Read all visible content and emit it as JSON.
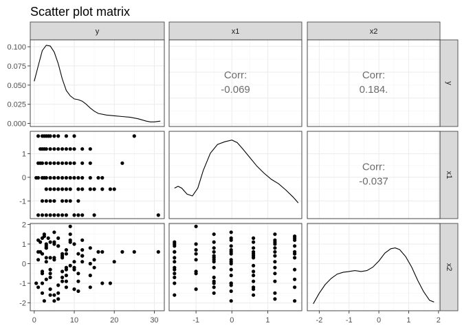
{
  "title": "Scatter plot matrix",
  "variables": [
    "y",
    "x1",
    "x2"
  ],
  "chart_data": {
    "type": "scatter-matrix",
    "title": "Scatter plot matrix",
    "variables": [
      "y",
      "x1",
      "x2"
    ],
    "grid": true,
    "axes": {
      "y": {
        "range": [
          -1,
          32.5
        ],
        "ticks": [
          0,
          10,
          20,
          30
        ],
        "tick_labels": [
          "0",
          "10",
          "20",
          "30"
        ]
      },
      "x1": {
        "range": [
          -1.75,
          1.95
        ],
        "ticks": [
          -1,
          0,
          1
        ],
        "tick_labels": [
          "-1",
          "0",
          "1"
        ]
      },
      "x2": {
        "range": [
          -2.4,
          2.05
        ],
        "ticks": [
          -2,
          -1,
          0,
          1,
          2
        ],
        "tick_labels": [
          "-2",
          "-1",
          "0",
          "1",
          "2"
        ]
      }
    },
    "density_axis": {
      "range": [
        -0.004,
        0.109
      ],
      "ticks": [
        0,
        0.025,
        0.05,
        0.075,
        0.1
      ],
      "tick_labels": [
        "0.000",
        "0.025",
        "0.050",
        "0.075",
        "0.100"
      ]
    },
    "density": {
      "y": [
        [
          0,
          0.055
        ],
        [
          1,
          0.075
        ],
        [
          2,
          0.095
        ],
        [
          3,
          0.102
        ],
        [
          4,
          0.101
        ],
        [
          5,
          0.093
        ],
        [
          6,
          0.078
        ],
        [
          7,
          0.058
        ],
        [
          8,
          0.043
        ],
        [
          9,
          0.036
        ],
        [
          10,
          0.032
        ],
        [
          11,
          0.031
        ],
        [
          12,
          0.029
        ],
        [
          13,
          0.025
        ],
        [
          14,
          0.02
        ],
        [
          15,
          0.016
        ],
        [
          16,
          0.013
        ],
        [
          18,
          0.011
        ],
        [
          20,
          0.01
        ],
        [
          22,
          0.009
        ],
        [
          24,
          0.008
        ],
        [
          26,
          0.006
        ],
        [
          28,
          0.003
        ],
        [
          29,
          0.002
        ],
        [
          30,
          0.002
        ],
        [
          31.5,
          0.003
        ]
      ],
      "x1": [
        [
          -1.6,
          0.35
        ],
        [
          -1.5,
          0.37
        ],
        [
          -1.4,
          0.35
        ],
        [
          -1.25,
          0.28
        ],
        [
          -1.1,
          0.26
        ],
        [
          -0.95,
          0.35
        ],
        [
          -0.8,
          0.55
        ],
        [
          -0.6,
          0.75
        ],
        [
          -0.4,
          0.85
        ],
        [
          -0.2,
          0.88
        ],
        [
          0,
          0.9
        ],
        [
          0.15,
          0.87
        ],
        [
          0.3,
          0.8
        ],
        [
          0.5,
          0.7
        ],
        [
          0.7,
          0.6
        ],
        [
          0.9,
          0.52
        ],
        [
          1.1,
          0.45
        ],
        [
          1.3,
          0.4
        ],
        [
          1.5,
          0.33
        ],
        [
          1.7,
          0.25
        ],
        [
          1.85,
          0.18
        ]
      ],
      "x2": [
        [
          -2.2,
          0.08
        ],
        [
          -2,
          0.2
        ],
        [
          -1.8,
          0.3
        ],
        [
          -1.6,
          0.37
        ],
        [
          -1.4,
          0.42
        ],
        [
          -1.2,
          0.44
        ],
        [
          -1,
          0.45
        ],
        [
          -0.8,
          0.46
        ],
        [
          -0.6,
          0.45
        ],
        [
          -0.4,
          0.46
        ],
        [
          -0.2,
          0.5
        ],
        [
          0,
          0.57
        ],
        [
          0.2,
          0.66
        ],
        [
          0.4,
          0.71
        ],
        [
          0.55,
          0.72
        ],
        [
          0.7,
          0.7
        ],
        [
          0.9,
          0.62
        ],
        [
          1.1,
          0.5
        ],
        [
          1.3,
          0.35
        ],
        [
          1.5,
          0.22
        ],
        [
          1.7,
          0.12
        ],
        [
          1.85,
          0.1
        ]
      ]
    },
    "correlations": [
      {
        "row": "y",
        "col": "x1",
        "label": "Corr:",
        "value": "-0.069"
      },
      {
        "row": "y",
        "col": "x2",
        "label": "Corr:",
        "value": "0.184."
      },
      {
        "row": "x1",
        "col": "x2",
        "label": "Corr:",
        "value": "-0.037"
      }
    ],
    "points": {
      "y": [
        1,
        2,
        2.5,
        3,
        3.5,
        4,
        5,
        6,
        8,
        10,
        1.5,
        2,
        2.5,
        3,
        4,
        5,
        6,
        7,
        8,
        9,
        10,
        12,
        14,
        1,
        1.5,
        2,
        3,
        4,
        5,
        6,
        7,
        8,
        9,
        10,
        12,
        14,
        22,
        0.5,
        1,
        2,
        2.5,
        3,
        4,
        5,
        6,
        7,
        8,
        9,
        10,
        11,
        12,
        14,
        16,
        17,
        3,
        4,
        5,
        6,
        7,
        8,
        9,
        11,
        12,
        14,
        15,
        17,
        19,
        20,
        2,
        3,
        4,
        5,
        7,
        8,
        9,
        11,
        1,
        2,
        3,
        4,
        5,
        6,
        7,
        8,
        10,
        11,
        12,
        15,
        25,
        31
      ],
      "x1": [
        1.75,
        1.75,
        1.75,
        1.75,
        1.75,
        1.75,
        1.75,
        1.75,
        1.75,
        1.75,
        1.2,
        1.2,
        1.2,
        1.2,
        1.2,
        1.2,
        1.2,
        1.2,
        1.2,
        1.2,
        1.2,
        1.2,
        1.2,
        0.6,
        0.6,
        0.6,
        0.6,
        0.6,
        0.6,
        0.6,
        0.6,
        0.6,
        0.6,
        0.6,
        0.6,
        0.6,
        0.6,
        -0.02,
        -0.02,
        -0.02,
        -0.02,
        -0.02,
        -0.02,
        -0.02,
        -0.02,
        -0.02,
        -0.02,
        -0.02,
        -0.02,
        -0.02,
        -0.02,
        -0.02,
        -0.02,
        -0.02,
        -0.5,
        -0.5,
        -0.5,
        -0.5,
        -0.5,
        -0.5,
        -0.5,
        -0.5,
        -0.5,
        -0.5,
        -0.5,
        -0.5,
        -0.5,
        -0.5,
        -1,
        -1,
        -1,
        -1,
        -1,
        -1,
        -1,
        -1,
        -1.6,
        -1.6,
        -1.6,
        -1.6,
        -1.6,
        -1.6,
        -1.6,
        -1.6,
        -1.6,
        -1.6,
        -1.6,
        -1.6,
        1.75,
        -1.6
      ],
      "x2": [
        1.2,
        0.5,
        1.4,
        -0.8,
        1.3,
        0.3,
        -1.9,
        0.9,
        -1.2,
        -0.3,
        0.6,
        -1.5,
        1.5,
        0.1,
        -0.5,
        1.0,
        -1.8,
        0.4,
        -0.9,
        1.1,
        -0.2,
        1.2,
        0.8,
        -1.2,
        1.1,
        -0.4,
        0.8,
        -1.6,
        0.3,
        1.3,
        -0.9,
        0.5,
        -0.1,
        -1.3,
        0.4,
        -0.6,
        0.6,
        -1.0,
        0.2,
        1.3,
        -1.9,
        0.9,
        -0.3,
        1.6,
        -1.1,
        0.5,
        -0.6,
        1.2,
        0.1,
        -1.4,
        0.7,
        0.0,
        0.6,
        -1.0,
        0.8,
        -0.7,
        1.1,
        -1.5,
        0.3,
        -0.2,
        1.5,
        -0.9,
        0.4,
        -1.2,
        0.2,
        0.6,
        -1.0,
        0.1,
        -0.5,
        1.0,
        -1.3,
        0.2,
        -0.4,
        0.7,
        1.9,
        0.5,
        0.6,
        -1.0,
        0.3,
        1.1,
        -1.6,
        0.9,
        -0.7,
        -0.3,
        1.0,
        -0.5,
        0.1,
        -0.2,
        0.6,
        0.6
      ]
    }
  }
}
